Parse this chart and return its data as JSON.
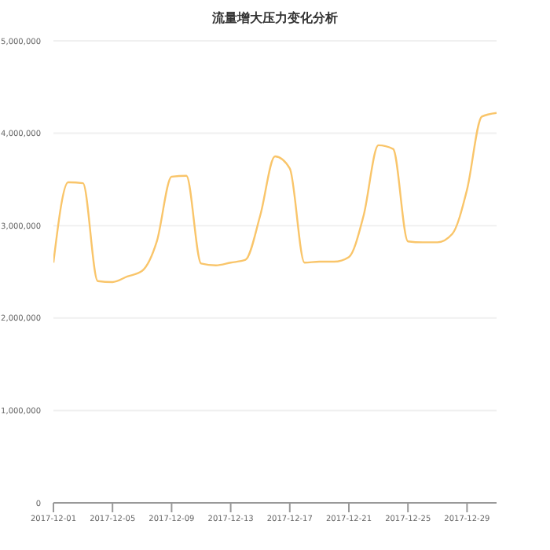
{
  "chart_data": {
    "type": "line",
    "title": "流量增大压力变化分析",
    "x": [
      "2017-12-01",
      "2017-12-02",
      "2017-12-03",
      "2017-12-04",
      "2017-12-05",
      "2017-12-06",
      "2017-12-07",
      "2017-12-08",
      "2017-12-09",
      "2017-12-10",
      "2017-12-11",
      "2017-12-12",
      "2017-12-13",
      "2017-12-14",
      "2017-12-15",
      "2017-12-16",
      "2017-12-17",
      "2017-12-18",
      "2017-12-19",
      "2017-12-20",
      "2017-12-21",
      "2017-12-22",
      "2017-12-23",
      "2017-12-24",
      "2017-12-25",
      "2017-12-26",
      "2017-12-27",
      "2017-12-28",
      "2017-12-29",
      "2017-12-30",
      "2017-12-31"
    ],
    "series": [
      {
        "color": "#f9c56a",
        "values": [
          2600000,
          3470000,
          3460000,
          2400000,
          2390000,
          2450000,
          2510000,
          2830000,
          3530000,
          3540000,
          2590000,
          2570000,
          2600000,
          2630000,
          3110000,
          3750000,
          3620000,
          2600000,
          2610000,
          2610000,
          2660000,
          3110000,
          3870000,
          3830000,
          2830000,
          2820000,
          2820000,
          2910000,
          3390000,
          4180000,
          4220000
        ]
      }
    ],
    "xlim": [
      "2017-12-01",
      "2017-12-31"
    ],
    "xticks": [
      "2017-12-01",
      "2017-12-05",
      "2017-12-09",
      "2017-12-13",
      "2017-12-17",
      "2017-12-21",
      "2017-12-25",
      "2017-12-29"
    ],
    "ylim": [
      0,
      5000000
    ],
    "yticks": [
      0,
      {
        "value": 1000000,
        "label": "1,000,000"
      },
      {
        "value": 2000000,
        "label": "2,000,000"
      },
      {
        "value": 3000000,
        "label": "3,000,000"
      },
      {
        "value": 4000000,
        "label": "4,000,000"
      },
      {
        "value": 5000000,
        "label": "5,000,000"
      }
    ],
    "grid": "y",
    "legend": false,
    "marker": "none",
    "line_style": "solid"
  }
}
